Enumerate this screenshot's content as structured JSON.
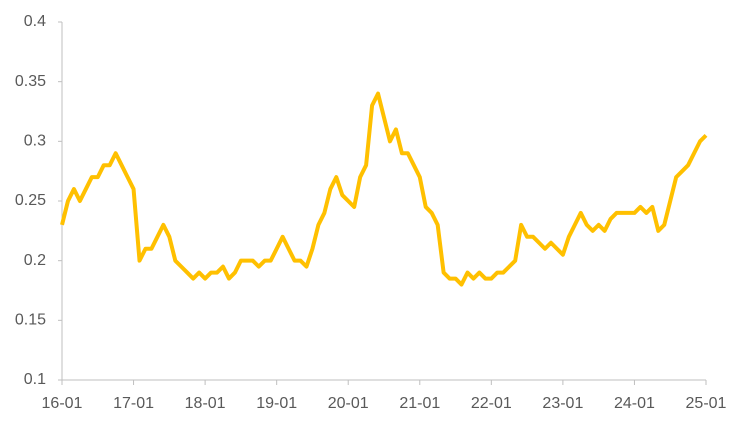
{
  "chart_data": {
    "type": "line",
    "x": [
      "16-01",
      "16-02",
      "16-03",
      "16-04",
      "16-05",
      "16-06",
      "16-07",
      "16-08",
      "16-09",
      "16-10",
      "16-11",
      "16-12",
      "17-01",
      "17-02",
      "17-03",
      "17-04",
      "17-05",
      "17-06",
      "17-07",
      "17-08",
      "17-09",
      "17-10",
      "17-11",
      "17-12",
      "18-01",
      "18-02",
      "18-03",
      "18-04",
      "18-05",
      "18-06",
      "18-07",
      "18-08",
      "18-09",
      "18-10",
      "18-11",
      "18-12",
      "19-01",
      "19-02",
      "19-03",
      "19-04",
      "19-05",
      "19-06",
      "19-07",
      "19-08",
      "19-09",
      "19-10",
      "19-11",
      "19-12",
      "20-01",
      "20-02",
      "20-03",
      "20-04",
      "20-05",
      "20-06",
      "20-07",
      "20-08",
      "20-09",
      "20-10",
      "20-11",
      "20-12",
      "21-01",
      "21-02",
      "21-03",
      "21-04",
      "21-05",
      "21-06",
      "21-07",
      "21-08",
      "21-09",
      "21-10",
      "21-11",
      "21-12",
      "22-01",
      "22-02",
      "22-03",
      "22-04",
      "22-05",
      "22-06",
      "22-07",
      "22-08",
      "22-09",
      "22-10",
      "22-11",
      "22-12",
      "23-01",
      "23-02",
      "23-03",
      "23-04",
      "23-05",
      "23-06",
      "23-07",
      "23-08",
      "23-09",
      "23-10",
      "23-11",
      "23-12",
      "24-01",
      "24-02",
      "24-03",
      "24-04",
      "24-05",
      "24-06",
      "24-07",
      "24-08",
      "24-09",
      "24-10",
      "24-11",
      "24-12",
      "25-01"
    ],
    "series": [
      {
        "color": "#FFC000",
        "values": [
          0.23,
          0.25,
          0.26,
          0.25,
          0.26,
          0.27,
          0.27,
          0.28,
          0.28,
          0.29,
          0.28,
          0.27,
          0.26,
          0.2,
          0.21,
          0.21,
          0.22,
          0.23,
          0.22,
          0.2,
          0.195,
          0.19,
          0.185,
          0.19,
          0.185,
          0.19,
          0.19,
          0.195,
          0.185,
          0.19,
          0.2,
          0.2,
          0.2,
          0.195,
          0.2,
          0.2,
          0.21,
          0.22,
          0.21,
          0.2,
          0.2,
          0.195,
          0.21,
          0.23,
          0.24,
          0.26,
          0.27,
          0.255,
          0.25,
          0.245,
          0.27,
          0.28,
          0.33,
          0.34,
          0.32,
          0.3,
          0.31,
          0.29,
          0.29,
          0.28,
          0.27,
          0.245,
          0.24,
          0.23,
          0.19,
          0.185,
          0.185,
          0.18,
          0.19,
          0.185,
          0.19,
          0.185,
          0.185,
          0.19,
          0.19,
          0.195,
          0.2,
          0.23,
          0.22,
          0.22,
          0.215,
          0.21,
          0.215,
          0.21,
          0.205,
          0.22,
          0.23,
          0.24,
          0.23,
          0.225,
          0.23,
          0.225,
          0.235,
          0.24,
          0.24,
          0.24,
          0.24,
          0.245,
          0.24,
          0.245,
          0.225,
          0.23,
          0.25,
          0.27,
          0.275,
          0.28,
          0.29,
          0.3,
          0.305
        ]
      }
    ],
    "xticks": [
      "16-01",
      "17-01",
      "18-01",
      "19-01",
      "20-01",
      "21-01",
      "22-01",
      "23-01",
      "24-01",
      "25-01"
    ],
    "ylim": [
      0.1,
      0.4
    ],
    "yticks": [
      0.1,
      0.15,
      0.2,
      0.25,
      0.3,
      0.35,
      0.4
    ]
  }
}
